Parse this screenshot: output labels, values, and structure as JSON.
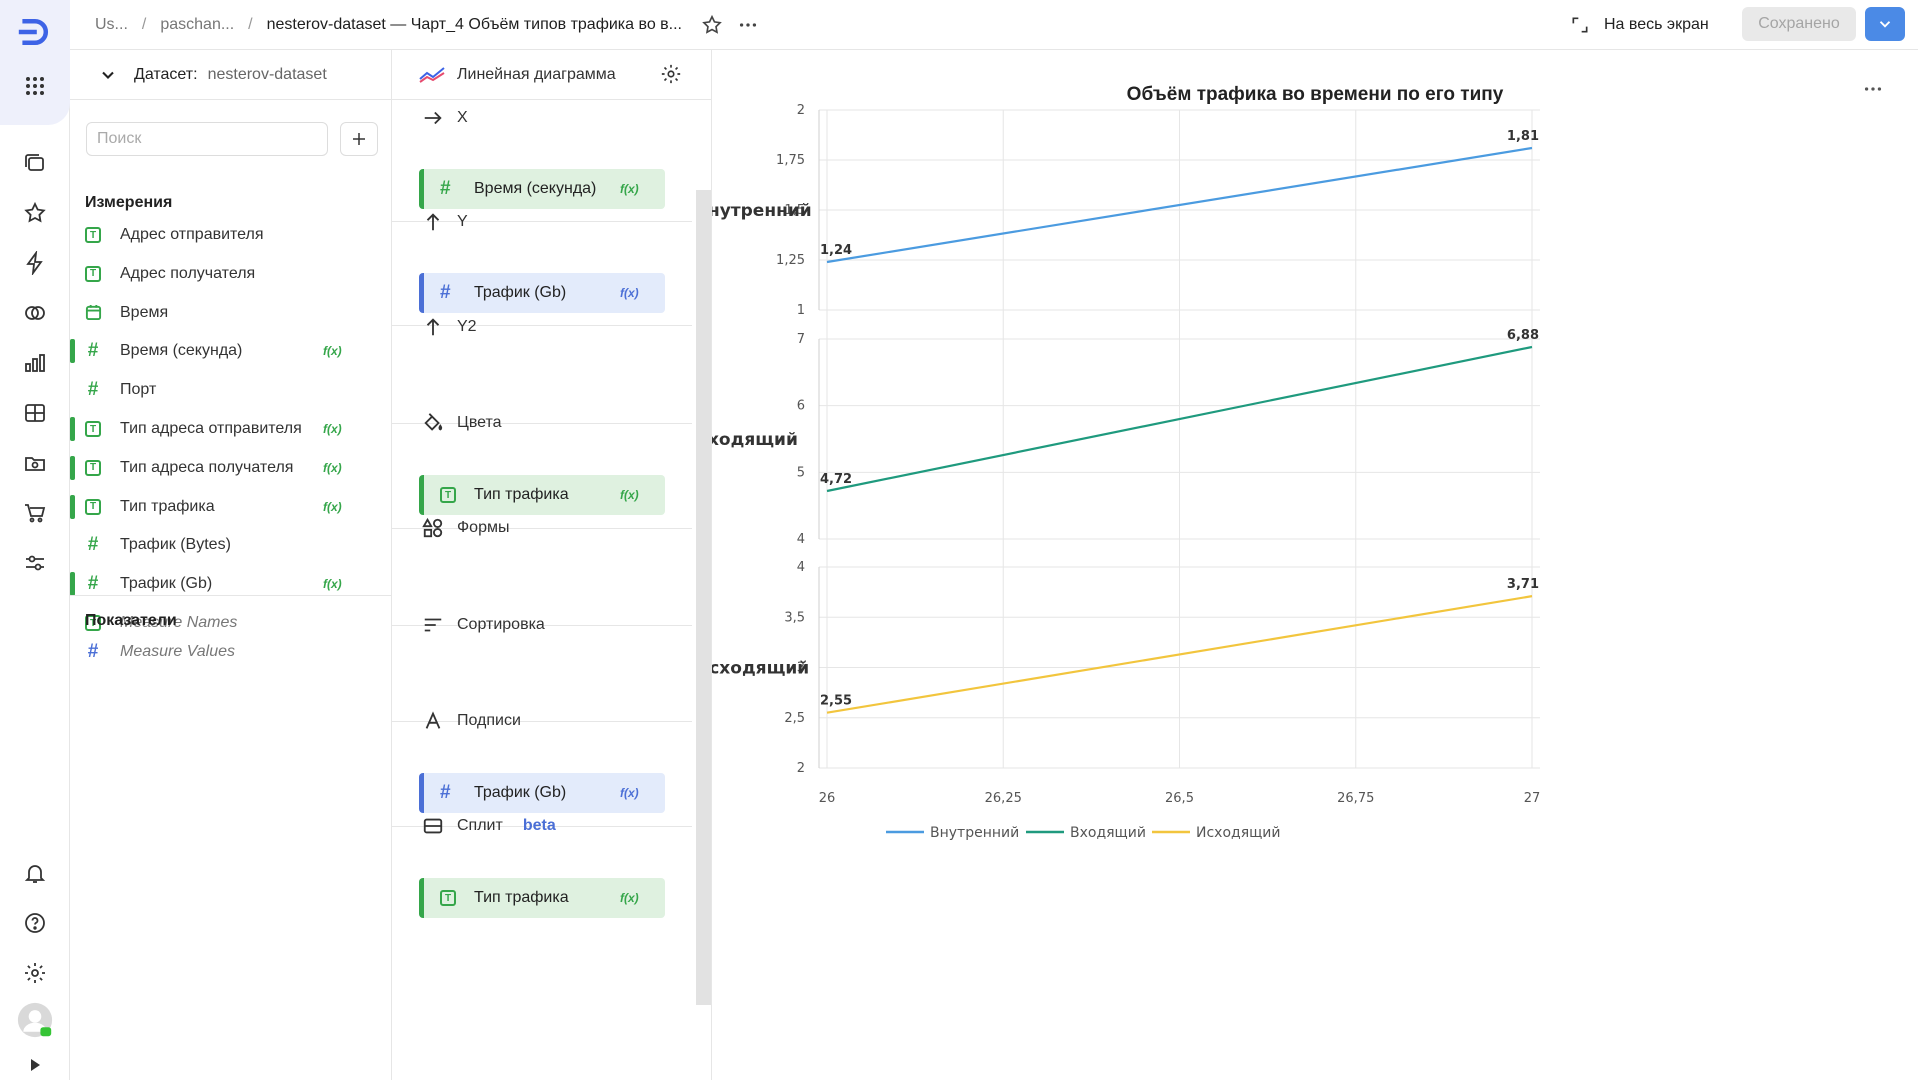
{
  "header": {
    "breadcrumbs": [
      "Us...",
      "paschan...",
      "nesterov-dataset — Чарт_4 Объём типов трафика во в..."
    ],
    "fullscreen_label": "На весь экран",
    "saved_label": "Сохранено"
  },
  "dataset": {
    "label": "Датасет:",
    "name": "nesterov-dataset",
    "search_placeholder": "Поиск",
    "dimensions_title": "Измерения",
    "dimensions": [
      {
        "name": "Адрес отправителя",
        "type": "text",
        "bar": false,
        "fx": false
      },
      {
        "name": "Адрес получателя",
        "type": "text",
        "bar": false,
        "fx": false
      },
      {
        "name": "Время",
        "type": "date",
        "bar": false,
        "fx": false
      },
      {
        "name": "Время (секунда)",
        "type": "number",
        "bar": true,
        "fx": true
      },
      {
        "name": "Порт",
        "type": "number",
        "bar": false,
        "fx": false
      },
      {
        "name": "Тип адреса отправителя",
        "type": "text",
        "bar": true,
        "fx": true
      },
      {
        "name": "Тип адреса получателя",
        "type": "text",
        "bar": true,
        "fx": true
      },
      {
        "name": "Тип трафика",
        "type": "text",
        "bar": true,
        "fx": true
      },
      {
        "name": "Трафик (Bytes)",
        "type": "number",
        "bar": false,
        "fx": false
      },
      {
        "name": "Трафик (Gb)",
        "type": "number",
        "bar": true,
        "fx": true
      },
      {
        "name": "Measure Names",
        "type": "text",
        "bar": false,
        "fx": false,
        "italic": true
      }
    ],
    "measures_title": "Показатели",
    "measures": [
      {
        "name": "Measure Values",
        "type": "number-blue",
        "italic": true
      }
    ],
    "fx_label": "f(x)"
  },
  "wizard": {
    "visualization": "Линейная диаграмма",
    "sections": [
      {
        "title": "X",
        "chip": {
          "name": "Время (секунда)",
          "color": "green",
          "icon": "hash"
        }
      },
      {
        "title": "Y",
        "chip": {
          "name": "Трафик (Gb)",
          "color": "blue",
          "icon": "hash"
        }
      },
      {
        "title": "Y2",
        "chip": null
      },
      {
        "title": "Цвета",
        "chip": {
          "name": "Тип трафика",
          "color": "green",
          "icon": "text"
        }
      },
      {
        "title": "Формы",
        "chip": null
      },
      {
        "title": "Сортировка",
        "chip": null
      },
      {
        "title": "Подписи",
        "chip": {
          "name": "Трафик (Gb)",
          "color": "blue",
          "icon": "hash"
        }
      },
      {
        "title": "Сплит",
        "beta": "beta",
        "chip": {
          "name": "Тип трафика",
          "color": "green",
          "icon": "text"
        }
      }
    ]
  },
  "chart_data": {
    "type": "line",
    "title": "Объём трафика во времени по его типу",
    "x": [
      26,
      27
    ],
    "x_ticks": [
      "26",
      "26,25",
      "26,5",
      "26,75",
      "27"
    ],
    "splits": [
      {
        "name": "Внутренний",
        "color": "#4b9be0",
        "values": [
          1.24,
          1.81
        ],
        "labels": [
          "1,24",
          "1,81"
        ],
        "ylim": [
          1,
          2
        ],
        "ticks": [
          "1",
          "1,25",
          "1,5",
          "1,75",
          "2"
        ]
      },
      {
        "name": "Входящий",
        "color": "#1f9a7e",
        "values": [
          4.72,
          6.88
        ],
        "labels": [
          "4,72",
          "6,88"
        ],
        "ylim": [
          4,
          7
        ],
        "ticks": [
          "4",
          "5",
          "6",
          "7"
        ]
      },
      {
        "name": "Исходящий",
        "color": "#f2c53d",
        "values": [
          2.55,
          3.71
        ],
        "labels": [
          "2,55",
          "3,71"
        ],
        "ylim": [
          2,
          4
        ],
        "ticks": [
          "2",
          "2,5",
          "3",
          "3,5",
          "4"
        ]
      }
    ],
    "legend": [
      "Внутренний",
      "Входящий",
      "Исходящий"
    ],
    "legend_position": "bottom",
    "grid": true
  }
}
